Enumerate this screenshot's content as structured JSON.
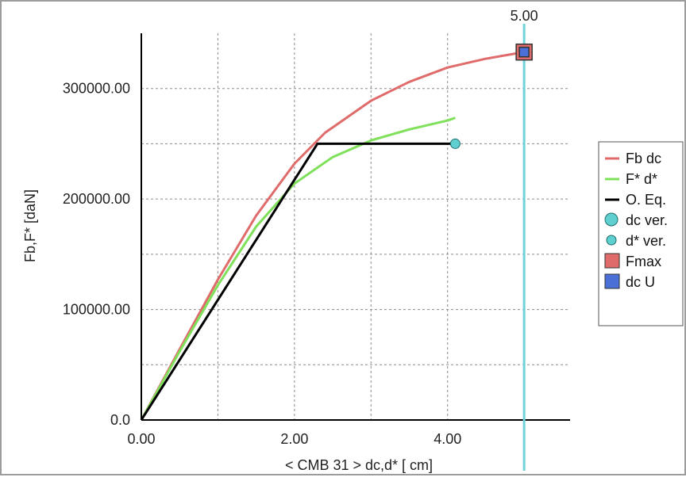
{
  "chart_data": {
    "type": "line",
    "xlabel": "< CMB 31 >  dc,d* [ cm]",
    "ylabel": "Fb,F* [daN]",
    "xlim": [
      0,
      5.6
    ],
    "ylim": [
      0,
      350000
    ],
    "xticks": [
      {
        "value": 0,
        "label": "0.00"
      },
      {
        "value": 2,
        "label": "2.00"
      },
      {
        "value": 4,
        "label": "4.00"
      }
    ],
    "yticks": [
      {
        "value": 0,
        "label": "0.0"
      },
      {
        "value": 100000,
        "label": "100000.00"
      },
      {
        "value": 200000,
        "label": "200000.00"
      },
      {
        "value": 300000,
        "label": "300000.00"
      }
    ],
    "grid": true,
    "legend_position": "right",
    "series": [
      {
        "name": "Fb dc",
        "kind": "line",
        "color": "#e06b6b",
        "x": [
          0,
          0.5,
          1.0,
          1.5,
          2.0,
          2.4,
          3.0,
          3.5,
          4.0,
          4.5,
          5.0
        ],
        "y": [
          0,
          64000,
          127000,
          185000,
          232000,
          260000,
          289000,
          306000,
          319000,
          327000,
          333000
        ]
      },
      {
        "name": "F* d*",
        "kind": "line",
        "color": "#7fe05a",
        "x": [
          0,
          0.5,
          1.0,
          1.5,
          2.0,
          2.5,
          3.0,
          3.5,
          4.0,
          4.1
        ],
        "y": [
          0,
          62000,
          122000,
          175000,
          214000,
          238000,
          253000,
          263000,
          271000,
          273500
        ]
      },
      {
        "name": "O. Eq.",
        "kind": "line",
        "color": "#000000",
        "x": [
          0,
          2.3,
          4.1
        ],
        "y": [
          0,
          250000,
          250000
        ]
      },
      {
        "name": "dc ver.",
        "kind": "marker-circle",
        "color": "#5fcfcf",
        "x": [],
        "y": []
      },
      {
        "name": "d* ver.",
        "kind": "marker-circle-small",
        "color": "#5fcfcf",
        "x": [
          4.1
        ],
        "y": [
          250000
        ]
      },
      {
        "name": "Fmax",
        "kind": "marker-square",
        "color": "#e06b6b",
        "x": [
          5.0
        ],
        "y": [
          333000
        ]
      },
      {
        "name": "dc U",
        "kind": "marker-square",
        "color": "#4a6fd6",
        "x": [
          5.0
        ],
        "y": [
          333000
        ]
      }
    ],
    "vline": {
      "x": 5.0,
      "label": "5.00",
      "color": "#6fd4d8"
    }
  }
}
